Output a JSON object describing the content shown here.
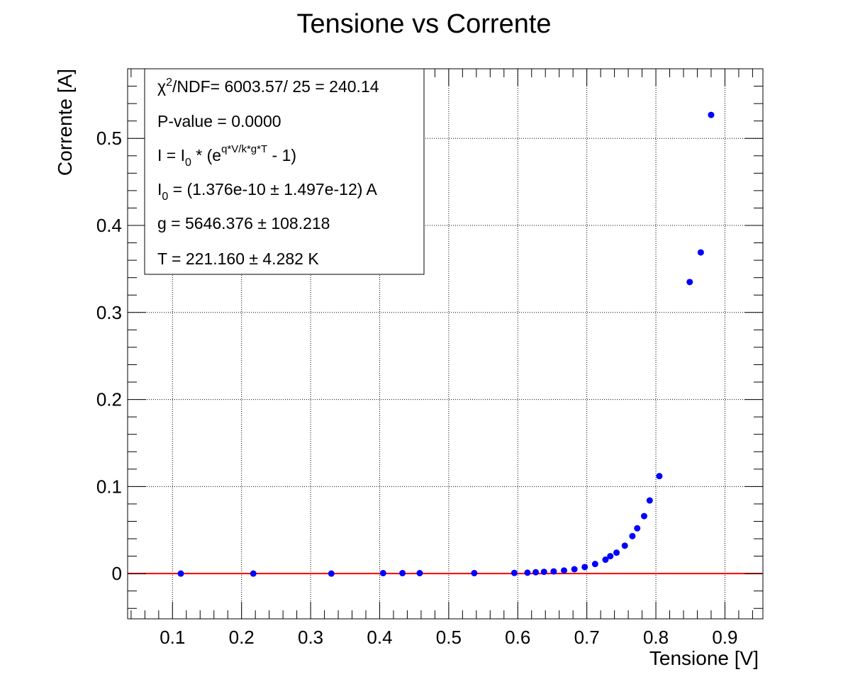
{
  "chart_data": {
    "type": "scatter",
    "title": "Tensione vs Corrente",
    "xlabel": "Tensione [V]",
    "ylabel": "Corrente [A]",
    "xlim": [
      0.035,
      0.955
    ],
    "ylim": [
      -0.052,
      0.58
    ],
    "x_ticks": [
      0.1,
      0.2,
      0.3,
      0.4,
      0.5,
      0.6,
      0.7,
      0.8,
      0.9
    ],
    "x_tick_labels": [
      "0.1",
      "0.2",
      "0.3",
      "0.4",
      "0.5",
      "0.6",
      "0.7",
      "0.8",
      "0.9"
    ],
    "y_ticks": [
      0,
      0.1,
      0.2,
      0.3,
      0.4,
      0.5
    ],
    "y_tick_labels": [
      "0",
      "0.1",
      "0.2",
      "0.3",
      "0.4",
      "0.5"
    ],
    "grid": true,
    "series": [
      {
        "marker_color": "#0000ff",
        "x": [
          0.112,
          0.217,
          0.33,
          0.405,
          0.433,
          0.458,
          0.537,
          0.595,
          0.614,
          0.626,
          0.638,
          0.652,
          0.667,
          0.682,
          0.697,
          0.712,
          0.727,
          0.734,
          0.743,
          0.755,
          0.766,
          0.773,
          0.783,
          0.791,
          0.805,
          0.849,
          0.865,
          0.88
        ],
        "y": [
          0.0,
          0.0,
          0.0,
          0.0005,
          0.0005,
          0.0005,
          0.0005,
          0.0007,
          0.001,
          0.0015,
          0.002,
          0.0025,
          0.0035,
          0.005,
          0.0075,
          0.011,
          0.016,
          0.02,
          0.024,
          0.032,
          0.043,
          0.052,
          0.066,
          0.084,
          0.112,
          0.335,
          0.369,
          0.527
        ]
      }
    ],
    "fit": {
      "color": "#ff0000",
      "I0": 1.376e-10,
      "g": 5646.376,
      "T": 221.16
    },
    "stats_box": {
      "chi2_symbol": "χ",
      "chi2_sup": "2",
      "chi2_rest": "/NDF= 6003.57/ 25 = 240.14",
      "pvalue": "P-value = 0.0000",
      "formula_left": "I = I",
      "formula_sub": "0",
      "formula_mid": " * (e",
      "formula_sup": "q*V/k*g*T",
      "formula_right": " - 1)",
      "i0_left": "I",
      "i0_sub": "0",
      "i0_right": " = (1.376e-10 ± 1.497e-12) A",
      "g_line": "g = 5646.376 ± 108.218",
      "t_line": "T = 221.160 ± 4.282 K"
    }
  }
}
